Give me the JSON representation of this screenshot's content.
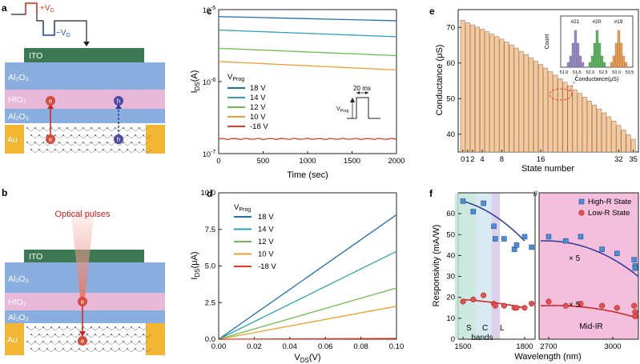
{
  "panels": {
    "a": "a",
    "b": "b",
    "c": "c",
    "d": "d",
    "e": "e",
    "f": "f"
  },
  "device": {
    "ito": "ITO",
    "al2o3": "Al₂O₃",
    "hfo2": "HfO₂",
    "au": "Au",
    "plus_vg": "+V",
    "minus_vg": "−V",
    "g": "G",
    "electron": "e",
    "hole": "h",
    "optical": "Optical pulses"
  },
  "chart_data": [
    {
      "id": "c",
      "type": "line",
      "xlabel": "Time (sec)",
      "ylabel": "I",
      "ylabel_sub": "DS",
      "ylabel_unit": "(A)",
      "xlim": [
        0,
        2000
      ],
      "ylim": [
        1e-07,
        1e-05
      ],
      "yscale": "log",
      "xticks": [
        "0",
        "500",
        "1000",
        "1500",
        "2000"
      ],
      "yticks": [
        {
          "base": "10",
          "exp": "-5",
          "v": 1e-05
        },
        {
          "base": "10",
          "exp": "-6",
          "v": 1e-06
        },
        {
          "base": "10",
          "exp": "-7",
          "v": 1e-07
        }
      ],
      "legend_title": "V",
      "legend_title_sub": "Prog",
      "inset": {
        "label": "20 ms",
        "v": "V",
        "v_sub": "Prog"
      },
      "series": [
        {
          "name": "18 V",
          "color": "#1f6fb2",
          "y0": 8e-06,
          "y1": 7e-06
        },
        {
          "name": "14 V",
          "color": "#2aa3b8",
          "y0": 5.2e-06,
          "y1": 4.2e-06
        },
        {
          "name": "12 V",
          "color": "#6cbf4a",
          "y0": 2.9e-06,
          "y1": 2.3e-06
        },
        {
          "name": "10 V",
          "color": "#f39c2c",
          "y0": 1.9e-06,
          "y1": 1.45e-06
        },
        {
          "name": "-18 V",
          "color": "#e23b2a",
          "y0": 1.6e-07,
          "y1": 1.6e-07
        }
      ]
    },
    {
      "id": "d",
      "type": "line",
      "xlabel": "V",
      "xlabel_sub": "DS",
      "xlabel_unit": "(V)",
      "ylabel": "I",
      "ylabel_sub": "DS",
      "ylabel_unit": "(μA)",
      "xlim": [
        0,
        0.1
      ],
      "ylim": [
        0,
        10
      ],
      "xticks": [
        "0.00",
        "0.02",
        "0.04",
        "0.06",
        "0.08",
        "0.10"
      ],
      "yticks": [
        "0.0",
        "2.5",
        "5.0",
        "7.5",
        "10.0"
      ],
      "legend_title": "V",
      "legend_title_sub": "Prog",
      "series": [
        {
          "name": "18 V",
          "color": "#1f6fb2",
          "slope": 85
        },
        {
          "name": "14 V",
          "color": "#2aa3b8",
          "slope": 60
        },
        {
          "name": "12 V",
          "color": "#6cbf4a",
          "slope": 35
        },
        {
          "name": "10 V",
          "color": "#f39c2c",
          "slope": 22.5
        },
        {
          "name": "-18 V",
          "color": "#e23b2a",
          "slope": 0.5
        }
      ]
    },
    {
      "id": "e",
      "type": "bar",
      "xlabel": "State number",
      "ylabel": "Conductance (μS)",
      "ylim": [
        35,
        75
      ],
      "xticks": [
        "0",
        "1",
        "2",
        "4",
        "8",
        "16",
        "32",
        "35"
      ],
      "yticks": [
        "40",
        "50",
        "60",
        "70"
      ],
      "values": [
        72,
        71.3,
        70.7,
        70.1,
        69.5,
        68.8,
        68.1,
        67.4,
        66.7,
        65.9,
        65.1,
        64.2,
        63.3,
        62.4,
        61.5,
        60.5,
        59.6,
        58.6,
        57.6,
        56.6,
        55.6,
        54.6,
        53.6,
        52.5,
        51.5,
        50.4,
        49.3,
        48.2,
        47.1,
        46,
        44.9,
        43.7,
        42.5,
        41.2,
        39.9,
        38.6
      ],
      "inset": {
        "ylabel": "Count",
        "xlabel": "Conductance(μS)",
        "xticks": [
          "51.0",
          "51.5",
          "52.0",
          "52.5",
          "53.0",
          "53.5"
        ],
        "peaks": [
          {
            "name": "#21",
            "color": "#9b8ac8"
          },
          {
            "name": "#20",
            "color": "#5cb85c"
          },
          {
            "name": "#19",
            "color": "#f0a050"
          }
        ]
      }
    },
    {
      "id": "f",
      "type": "scatter",
      "xlabel": "Wavelength (nm)",
      "ylabel": "Responsivity (mA/W)",
      "ylim": [
        0,
        70
      ],
      "xticks": [
        "1500",
        "1800",
        "2700",
        "3000"
      ],
      "yticks": [
        "0",
        "10",
        "20",
        "30",
        "40",
        "50",
        "60"
      ],
      "legend": [
        "High-R State",
        "Low-R State"
      ],
      "annotations": [
        "S",
        "C",
        "L",
        "bands",
        "Mid-IR",
        "× 5",
        "× 5"
      ],
      "series": [
        {
          "name": "High-R State",
          "color": "#4a90d9",
          "left": [
            [
              1500,
              66
            ],
            [
              1550,
              61
            ],
            [
              1600,
              65
            ],
            [
              1650,
              54
            ],
            [
              1700,
              48
            ],
            [
              1750,
              43
            ],
            [
              1800,
              49
            ]
          ],
          "right": [
            [
              2450,
              48
            ],
            [
              2550,
              45
            ],
            [
              2620,
              44
            ],
            [
              2700,
              49
            ],
            [
              2780,
              47
            ],
            [
              2850,
              49
            ],
            [
              2950,
              43
            ],
            [
              3020,
              41
            ],
            [
              3100,
              38
            ],
            [
              3200,
              35
            ],
            [
              3260,
              34
            ]
          ]
        },
        {
          "name": "Low-R State",
          "color": "#e85050",
          "left": [
            [
              1500,
              18
            ],
            [
              1550,
              19
            ],
            [
              1600,
              21
            ],
            [
              1650,
              17
            ],
            [
              1700,
              16
            ],
            [
              1750,
              15
            ],
            [
              1800,
              15
            ]
          ],
          "right": [
            [
              2450,
              16
            ],
            [
              2550,
              15
            ],
            [
              2620,
              17
            ],
            [
              2700,
              18
            ],
            [
              2780,
              16
            ],
            [
              2850,
              17
            ],
            [
              2950,
              16
            ],
            [
              3020,
              15
            ],
            [
              3100,
              16
            ],
            [
              3200,
              13
            ],
            [
              3260,
              11
            ]
          ]
        }
      ]
    }
  ]
}
